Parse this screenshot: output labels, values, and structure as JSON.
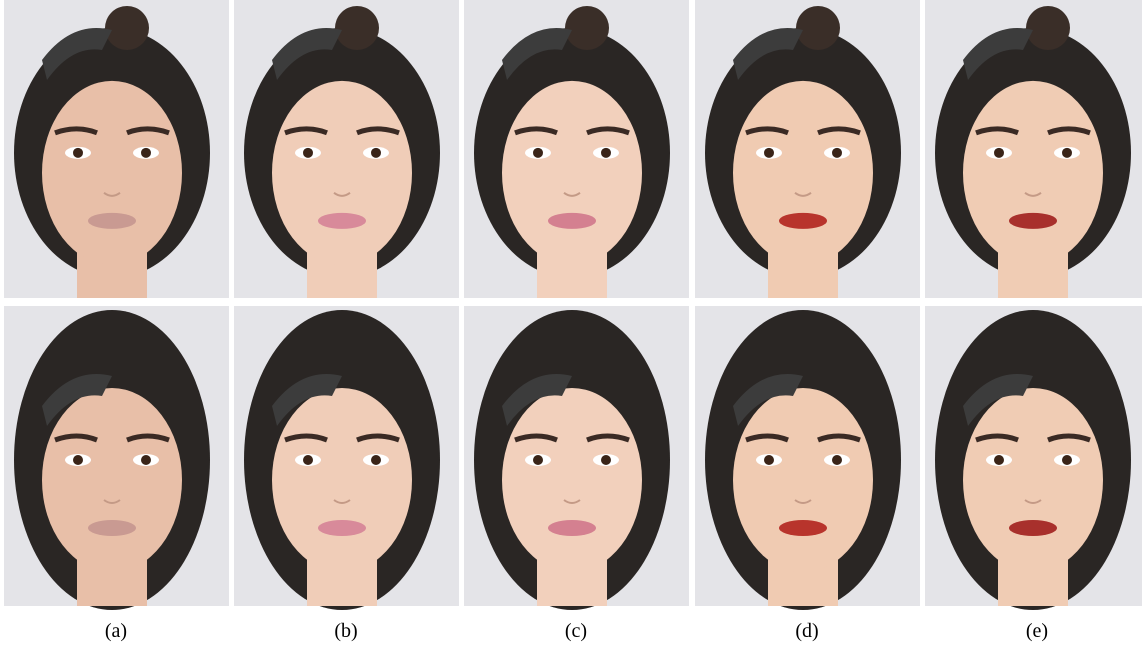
{
  "figure": {
    "captions": [
      "(a)",
      "(b)",
      "(c)",
      "(d)",
      "(e)"
    ]
  }
}
